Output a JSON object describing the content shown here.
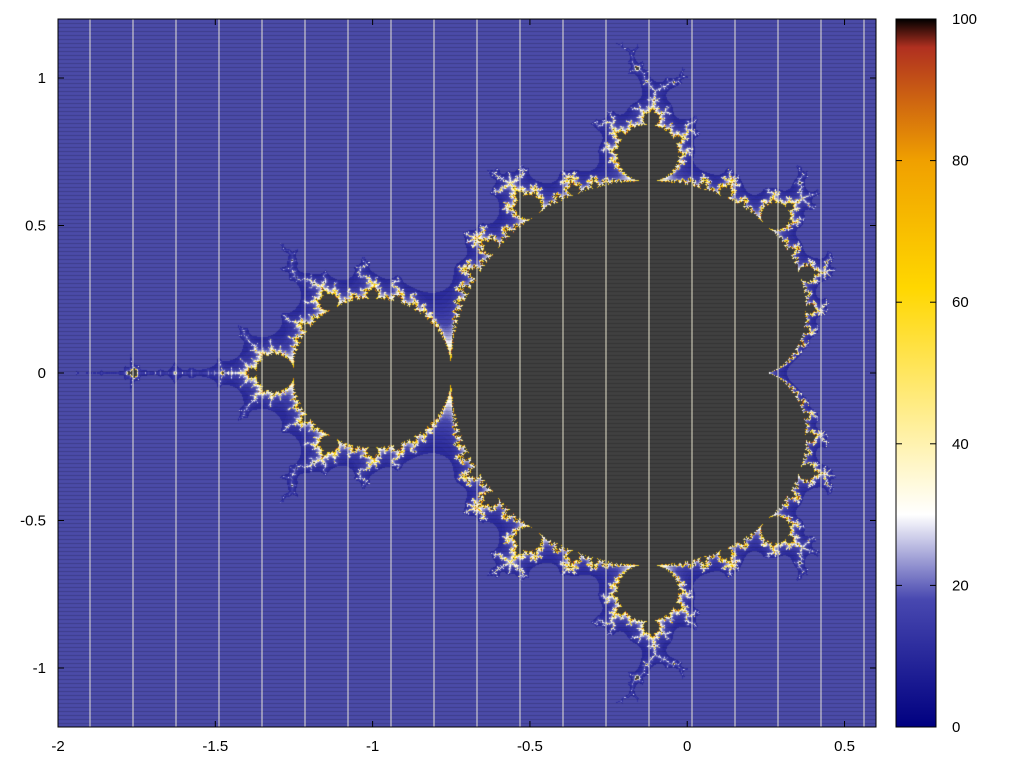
{
  "chart_data": {
    "type": "heatmap",
    "title": "",
    "xlabel": "",
    "ylabel": "",
    "xlim": [
      -2,
      0.6
    ],
    "ylim": [
      -1.2,
      1.2
    ],
    "x_ticks": [
      {
        "value": -2,
        "label": "-2"
      },
      {
        "value": -1.5,
        "label": "-1.5"
      },
      {
        "value": -1,
        "label": "-1"
      },
      {
        "value": -0.5,
        "label": "-0.5"
      },
      {
        "value": 0,
        "label": "0"
      },
      {
        "value": 0.5,
        "label": "0.5"
      }
    ],
    "y_ticks": [
      {
        "value": 1,
        "label": "1"
      },
      {
        "value": 0.5,
        "label": "0.5"
      },
      {
        "value": 0,
        "label": "0"
      },
      {
        "value": -0.5,
        "label": "-0.5"
      },
      {
        "value": -1,
        "label": "-1"
      }
    ],
    "colorbar": {
      "range": [
        0,
        100
      ],
      "ticks": [
        {
          "value": 0,
          "label": "0"
        },
        {
          "value": 20,
          "label": "20"
        },
        {
          "value": 40,
          "label": "40"
        },
        {
          "value": 60,
          "label": "60"
        },
        {
          "value": 80,
          "label": "80"
        },
        {
          "value": 100,
          "label": "100"
        }
      ],
      "colors": [
        "#000080",
        "#4848b0",
        "#ffffff",
        "#ffd700",
        "#f0a000",
        "#b03020",
        "#000000"
      ]
    },
    "data_description": "escape-time iteration count for z -> z^2 + c",
    "max_iterations": 100,
    "inside_color": "#404040",
    "background_color": "#4b4ba8"
  }
}
